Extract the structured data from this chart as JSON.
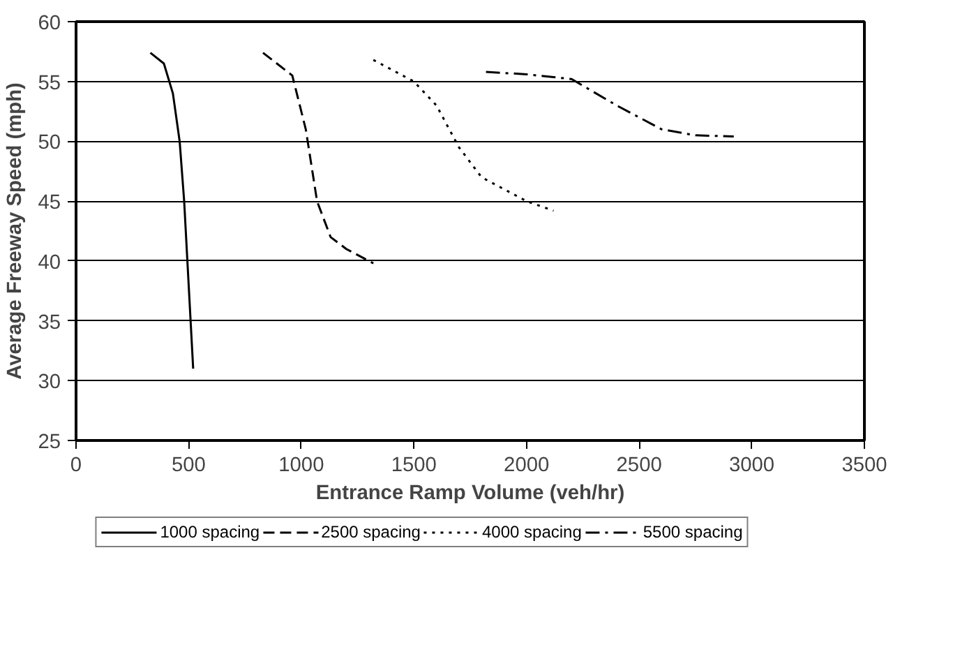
{
  "chart_data": {
    "type": "line",
    "xlabel": "Entrance Ramp Volume (veh/hr)",
    "ylabel": "Average Freeway Speed (mph)",
    "xlim": [
      0,
      3500
    ],
    "ylim": [
      25,
      60
    ],
    "xticks": [
      0,
      500,
      1000,
      1500,
      2000,
      2500,
      3000,
      3500
    ],
    "yticks": [
      25,
      30,
      35,
      40,
      45,
      50,
      55,
      60
    ],
    "grid": "y",
    "legend": "bottom",
    "marker": "none",
    "series": [
      {
        "name": "1000 spacing",
        "color": "#000000",
        "line_style": "solid",
        "x": [
          330,
          390,
          430,
          460,
          480,
          500,
          520
        ],
        "values": [
          57.4,
          56.5,
          54,
          50,
          45,
          38,
          31
        ]
      },
      {
        "name": "2500 spacing",
        "color": "#000000",
        "line_style": "dashed",
        "x": [
          830,
          960,
          1020,
          1070,
          1130,
          1200,
          1320
        ],
        "values": [
          57.4,
          55.5,
          51,
          45,
          42,
          41,
          39.8
        ]
      },
      {
        "name": "4000 spacing",
        "color": "#000000",
        "line_style": "dotted",
        "x": [
          1320,
          1500,
          1600,
          1700,
          1800,
          2000,
          2120
        ],
        "values": [
          56.8,
          55,
          53,
          49.5,
          47,
          45,
          44.2
        ]
      },
      {
        "name": "5500 spacing",
        "color": "#000000",
        "line_style": "dashdot",
        "x": [
          1820,
          2000,
          2200,
          2400,
          2600,
          2750,
          2920
        ],
        "values": [
          55.8,
          55.6,
          55.2,
          53,
          51,
          50.5,
          50.4
        ]
      }
    ]
  }
}
